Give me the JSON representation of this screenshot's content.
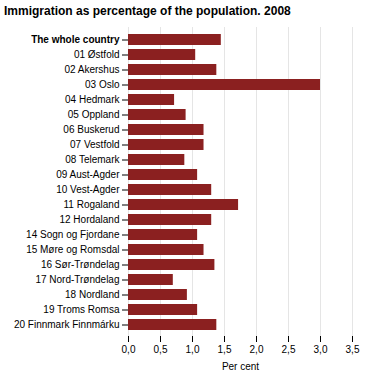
{
  "chart_data": {
    "type": "bar",
    "orientation": "horizontal",
    "title": "Immigration as percentage of the population. 2008",
    "xlabel": "Per cent",
    "categories": [
      "The whole country",
      "01 Østfold",
      "02 Akershus",
      "03 Oslo",
      "04 Hedmark",
      "05 Oppland",
      "06 Buskerud",
      "07 Vestfold",
      "08 Telemark",
      "09 Aust-Agder",
      "10 Vest-Agder",
      "11 Rogaland",
      "12 Hordaland",
      "14 Sogn og Fjordane",
      "15 Møre og Romsdal",
      "16 Sør-Trøndelag",
      "17 Nord-Trøndelag",
      "18 Nordland",
      "19 Troms Romsa",
      "20 Finnmark Finnmárku"
    ],
    "values": [
      1.45,
      1.05,
      1.38,
      3.0,
      0.72,
      0.9,
      1.18,
      1.18,
      0.88,
      1.08,
      1.3,
      1.72,
      1.3,
      1.08,
      1.18,
      1.35,
      0.7,
      0.92,
      1.08,
      1.38
    ],
    "color": "#8B2020",
    "xlim": [
      0,
      3.5
    ],
    "xticks": [
      {
        "value": 0.0,
        "label": "0,0"
      },
      {
        "value": 0.5,
        "label": "0,5"
      },
      {
        "value": 1.0,
        "label": "1,0"
      },
      {
        "value": 1.5,
        "label": "1,5"
      },
      {
        "value": 2.0,
        "label": "2,0"
      },
      {
        "value": 2.5,
        "label": "2,5"
      },
      {
        "value": 3.0,
        "label": "3,0"
      },
      {
        "value": 3.5,
        "label": "3,5"
      }
    ],
    "grid": true
  }
}
